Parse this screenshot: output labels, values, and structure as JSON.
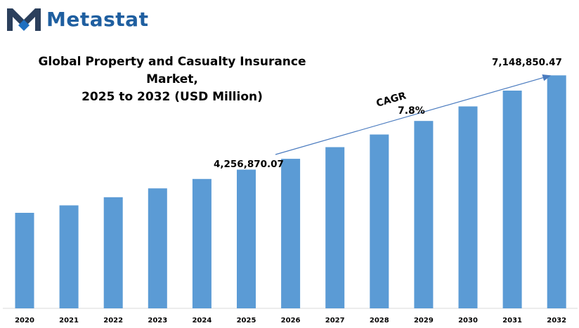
{
  "brand": {
    "name": "Metastat"
  },
  "colors": {
    "bar": "#5b9bd5",
    "brand": "#1f5fa0",
    "arrow": "#4a7bbf"
  },
  "chart_data": {
    "type": "bar",
    "title_line1": "Global Property and Casualty Insurance Market,",
    "title_line2": "2025 to 2032 (USD Million)",
    "categories": [
      "2020",
      "2021",
      "2022",
      "2023",
      "2024",
      "2025",
      "2026",
      "2027",
      "2028",
      "2029",
      "2030",
      "2031",
      "2032"
    ],
    "values": [
      2930000,
      3160000,
      3410000,
      3680000,
      3970000,
      4256870.07,
      4589000,
      4947000,
      5333000,
      5749000,
      6197000,
      6681000,
      7148850.47
    ],
    "ylim": [
      0,
      7500000
    ],
    "xlabel": "",
    "ylabel": "",
    "annotations": {
      "start_value": "4,256,870.07",
      "end_value": "7,148,850.47",
      "cagr_label": "CAGR",
      "cagr_value": "7.8%"
    }
  }
}
